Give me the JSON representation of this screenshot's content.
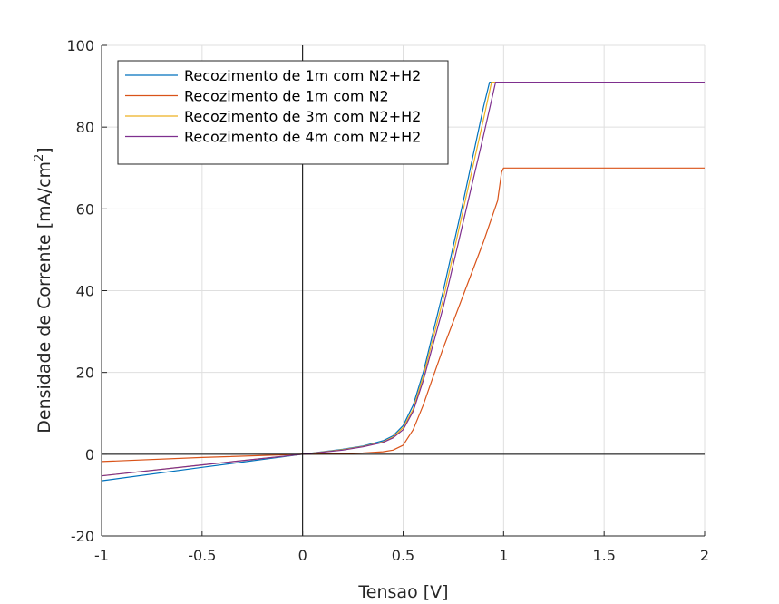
{
  "chart_data": {
    "type": "line",
    "title": "",
    "xlabel": "Tensao [V]",
    "ylabel": "Densidade de Corrente [mA/cm",
    "ylabel_sup": "2",
    "ylabel_tail": "]",
    "xlim": [
      -1,
      2
    ],
    "ylim": [
      -20,
      100
    ],
    "xticks": [
      -1,
      -0.5,
      0,
      0.5,
      1,
      1.5,
      2
    ],
    "xtick_labels": [
      "-1",
      "-0.5",
      "0",
      "0.5",
      "1",
      "1.5",
      "2"
    ],
    "yticks": [
      -20,
      0,
      20,
      40,
      60,
      80,
      100
    ],
    "ytick_labels": [
      "-20",
      "0",
      "20",
      "40",
      "60",
      "80",
      "100"
    ],
    "grid": true,
    "legend_position": "top-left",
    "series": [
      {
        "name": "Recozimento de 1m com N2+H2",
        "color": "#0072bd",
        "x": [
          -1,
          -0.5,
          0,
          0.2,
          0.3,
          0.4,
          0.45,
          0.5,
          0.55,
          0.6,
          0.7,
          0.8,
          0.9,
          0.93,
          1.0,
          1.5,
          2
        ],
        "y": [
          -6.5,
          -3.2,
          0,
          1.2,
          2,
          3.3,
          4.5,
          7,
          12,
          20,
          40,
          62,
          85,
          91,
          91,
          91,
          91
        ]
      },
      {
        "name": "Recozimento de 1m com N2",
        "color": "#d95319",
        "x": [
          -1,
          -0.5,
          0,
          0.2,
          0.3,
          0.4,
          0.45,
          0.5,
          0.55,
          0.6,
          0.65,
          0.7,
          0.8,
          0.9,
          0.97,
          0.99,
          1.0,
          1.5,
          2
        ],
        "y": [
          -1.8,
          -0.8,
          0,
          0.15,
          0.3,
          0.6,
          1.0,
          2.2,
          6,
          12,
          19,
          26,
          39,
          52,
          62,
          69,
          70,
          70,
          70
        ]
      },
      {
        "name": "Recozimento de 3m com N2+H2",
        "color": "#edb120",
        "x": [
          -1,
          -0.5,
          0,
          0.2,
          0.3,
          0.4,
          0.45,
          0.5,
          0.55,
          0.6,
          0.7,
          0.8,
          0.9,
          0.94,
          1.0,
          1.5,
          2
        ],
        "y": [
          -5.3,
          -2.6,
          0,
          1.1,
          1.9,
          3.0,
          4.2,
          6.5,
          11,
          19,
          38,
          60,
          82,
          91,
          91,
          91,
          91
        ]
      },
      {
        "name": "Recozimento de 4m com N2+H2",
        "color": "#7e2f8e",
        "x": [
          -1,
          -0.5,
          0,
          0.2,
          0.3,
          0.4,
          0.45,
          0.5,
          0.55,
          0.6,
          0.7,
          0.8,
          0.9,
          0.96,
          1.0,
          1.5,
          2
        ],
        "y": [
          -5.3,
          -2.6,
          0,
          1.0,
          1.8,
          2.9,
          4.0,
          6.0,
          10.5,
          18,
          36,
          57,
          78,
          91,
          91,
          91,
          91
        ]
      }
    ]
  }
}
